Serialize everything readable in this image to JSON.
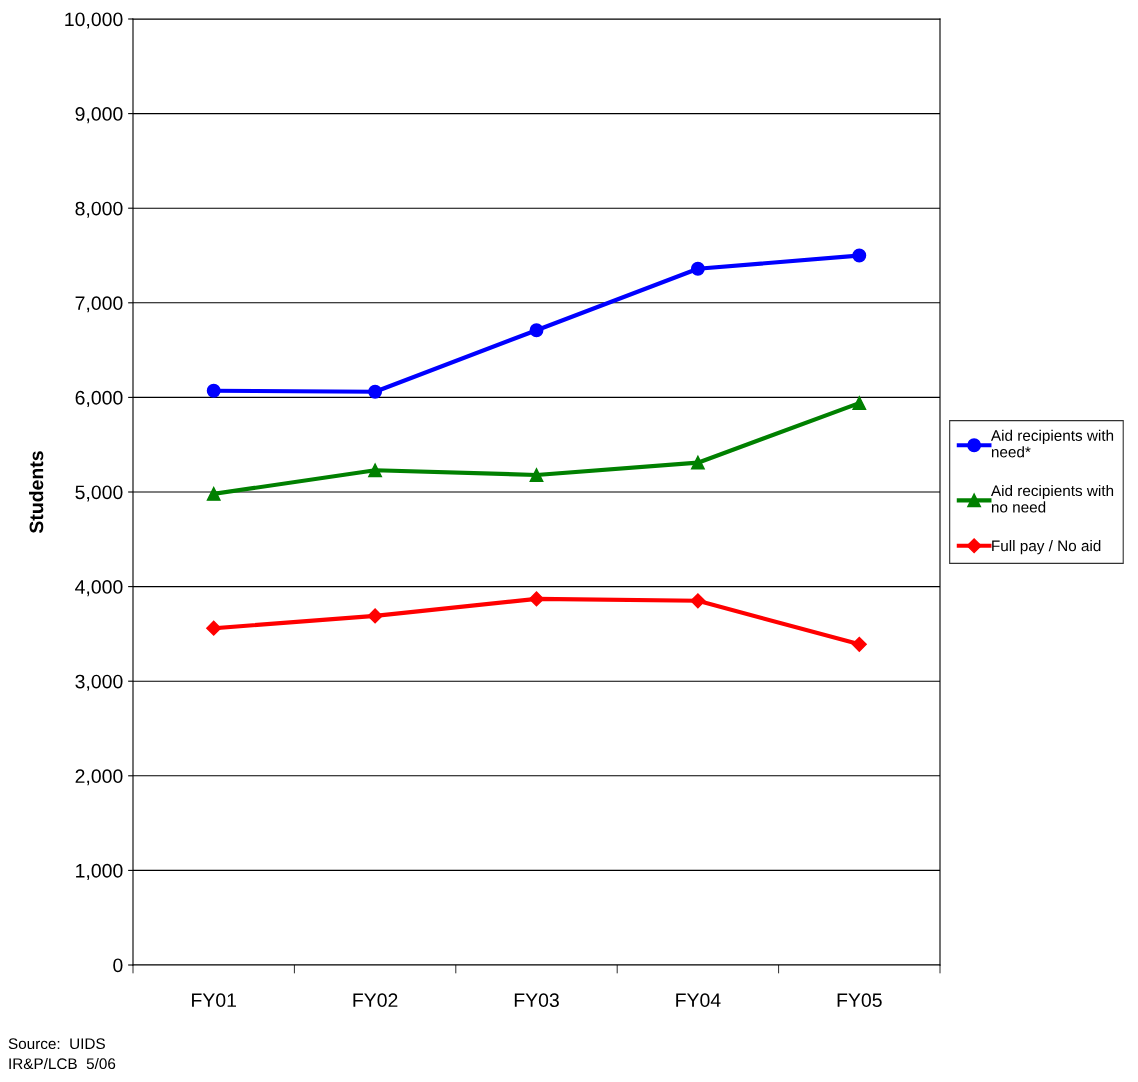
{
  "chart_data": {
    "type": "line",
    "ylabel": "Students",
    "categories": [
      "FY01",
      "FY02",
      "FY03",
      "FY04",
      "FY05"
    ],
    "series": [
      {
        "name": "Aid recipients with need*",
        "color": "#0000ff",
        "marker": "circle",
        "values": [
          6070,
          6060,
          6710,
          7360,
          7500
        ]
      },
      {
        "name": "Aid recipients with no need",
        "color": "#008000",
        "marker": "triangle",
        "values": [
          4980,
          5230,
          5180,
          5310,
          5940
        ]
      },
      {
        "name": "Full pay / No aid",
        "color": "#ff0000",
        "marker": "diamond",
        "values": [
          3560,
          3690,
          3870,
          3850,
          3390
        ]
      }
    ],
    "ylim": [
      0,
      10000
    ],
    "yticks": [
      {
        "value": 0,
        "label": "0"
      },
      {
        "value": 1000,
        "label": "1,000"
      },
      {
        "value": 2000,
        "label": "2,000"
      },
      {
        "value": 3000,
        "label": "3,000"
      },
      {
        "value": 4000,
        "label": "4,000"
      },
      {
        "value": 5000,
        "label": "5,000"
      },
      {
        "value": 6000,
        "label": "6,000"
      },
      {
        "value": 7000,
        "label": "7,000"
      },
      {
        "value": 8000,
        "label": "8,000"
      },
      {
        "value": 9000,
        "label": "9,000"
      },
      {
        "value": 10000,
        "label": "10,000"
      }
    ],
    "grid": "y",
    "legend": "right",
    "line_style": "solid",
    "annotations": [
      "Source:  UIDS",
      "IR&P/LCB  5/06"
    ]
  }
}
